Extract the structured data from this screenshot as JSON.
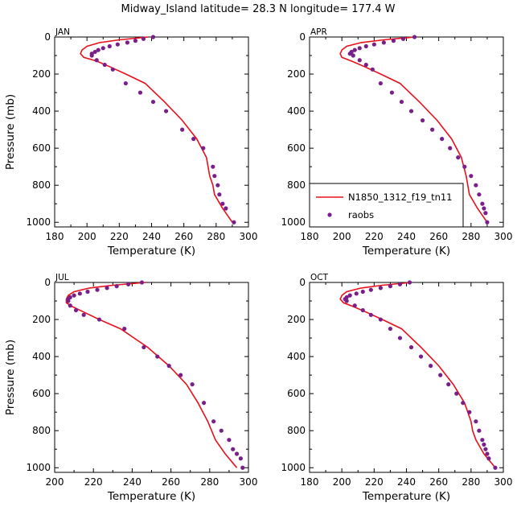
{
  "page_title": "Midway_Island  latitude= 28.3 N longitude= 177.4 W",
  "colors": {
    "model_line": "#e8101a",
    "raobs_marker": "#7a1f8a",
    "axes": "#000000"
  },
  "chart_data": [
    {
      "type": "line",
      "panel_label": "JAN",
      "xlabel": "Temperature (K)",
      "ylabel": "Pressure (mb)",
      "xlim": [
        180,
        300
      ],
      "ylim": [
        1025,
        0
      ],
      "xticks": [
        180,
        200,
        220,
        240,
        260,
        280,
        300
      ],
      "yticks": [
        0,
        200,
        400,
        600,
        800,
        1000
      ],
      "series": [
        {
          "name": "N1850_1312_f19_tn11",
          "style": "line",
          "x": [
            238,
            220,
            208,
            200,
            197,
            196,
            198,
            206,
            214,
            224,
            236,
            248,
            259,
            268,
            274,
            276,
            278,
            279,
            284,
            290
          ],
          "y": [
            0,
            15,
            30,
            50,
            70,
            90,
            110,
            130,
            160,
            200,
            250,
            350,
            450,
            550,
            650,
            750,
            800,
            850,
            925,
            1000
          ]
        },
        {
          "name": "raobs",
          "style": "markers",
          "x": [
            241,
            235,
            230,
            225,
            219,
            214,
            210,
            207,
            205,
            203,
            203,
            206,
            211,
            216,
            224,
            233,
            241,
            249,
            259,
            266,
            272,
            278,
            279,
            281,
            282,
            284,
            286,
            291
          ],
          "y": [
            0,
            10,
            20,
            30,
            40,
            50,
            60,
            70,
            80,
            90,
            100,
            125,
            150,
            175,
            250,
            300,
            350,
            400,
            500,
            550,
            600,
            700,
            750,
            800,
            850,
            900,
            925,
            1000
          ]
        }
      ]
    },
    {
      "type": "line",
      "panel_label": "APR",
      "xlabel": "Temperature (K)",
      "ylabel": "",
      "xlim": [
        180,
        300
      ],
      "ylim": [
        1025,
        0
      ],
      "xticks": [
        180,
        200,
        220,
        240,
        260,
        280,
        300
      ],
      "yticks": [
        0,
        200,
        400,
        600,
        800,
        1000
      ],
      "legend_position": "bottom-left",
      "series": [
        {
          "name": "N1850_1312_f19_tn11",
          "style": "line",
          "x": [
            245,
            226,
            212,
            203,
            200,
            199,
            200,
            206,
            214,
            224,
            236,
            248,
            259,
            268,
            274,
            277,
            278,
            279,
            284,
            290
          ],
          "y": [
            0,
            15,
            30,
            50,
            70,
            90,
            110,
            130,
            160,
            200,
            250,
            350,
            450,
            550,
            650,
            750,
            800,
            850,
            925,
            1000
          ]
        },
        {
          "name": "raobs",
          "style": "markers",
          "x": [
            245,
            238,
            232,
            226,
            220,
            215,
            211,
            208,
            206,
            205,
            207,
            211,
            215,
            219,
            224,
            231,
            237,
            243,
            250,
            256,
            262,
            267,
            272,
            276,
            280,
            283,
            285,
            287,
            288,
            289,
            290
          ],
          "y": [
            0,
            10,
            20,
            30,
            40,
            50,
            60,
            70,
            80,
            90,
            100,
            125,
            150,
            175,
            250,
            300,
            350,
            400,
            450,
            500,
            550,
            600,
            650,
            700,
            750,
            800,
            850,
            900,
            925,
            950,
            1000
          ]
        }
      ]
    },
    {
      "type": "line",
      "panel_label": "JUL",
      "xlabel": "Temperature (K)",
      "ylabel": "Pressure (mb)",
      "xlim": [
        200,
        300
      ],
      "ylim": [
        1025,
        0
      ],
      "xticks": [
        200,
        220,
        240,
        260,
        280,
        300
      ],
      "yticks": [
        0,
        200,
        400,
        600,
        800,
        1000
      ],
      "series": [
        {
          "name": "N1850_1312_f19_tn11",
          "style": "line",
          "x": [
            247,
            230,
            218,
            210,
            207,
            206,
            206,
            209,
            215,
            223,
            234,
            248,
            259,
            268,
            274,
            279,
            281,
            283,
            288,
            294
          ],
          "y": [
            0,
            15,
            30,
            50,
            70,
            90,
            110,
            130,
            160,
            200,
            250,
            350,
            450,
            550,
            650,
            750,
            800,
            850,
            925,
            1000
          ]
        },
        {
          "name": "raobs",
          "style": "markers",
          "x": [
            245,
            238,
            232,
            227,
            222,
            217,
            213,
            210,
            208,
            207,
            207,
            208,
            211,
            215,
            223,
            236,
            246,
            253,
            259,
            265,
            271,
            277,
            282,
            286,
            290,
            292,
            294,
            296,
            297
          ],
          "y": [
            0,
            10,
            20,
            30,
            40,
            50,
            60,
            70,
            80,
            90,
            100,
            125,
            150,
            175,
            200,
            250,
            350,
            400,
            450,
            500,
            550,
            650,
            750,
            800,
            850,
            900,
            925,
            950,
            1000
          ]
        }
      ]
    },
    {
      "type": "line",
      "panel_label": "OCT",
      "xlabel": "Temperature (K)",
      "ylabel": "",
      "xlim": [
        180,
        300
      ],
      "ylim": [
        1025,
        0
      ],
      "xticks": [
        180,
        200,
        220,
        240,
        260,
        280,
        300
      ],
      "yticks": [
        0,
        200,
        400,
        600,
        800,
        1000
      ],
      "series": [
        {
          "name": "N1850_1312_f19_tn11",
          "style": "line",
          "x": [
            243,
            225,
            212,
            203,
            200,
            199,
            201,
            207,
            215,
            225,
            237,
            249,
            260,
            269,
            276,
            280,
            281,
            283,
            288,
            295
          ],
          "y": [
            0,
            15,
            30,
            50,
            70,
            90,
            110,
            130,
            160,
            200,
            250,
            350,
            450,
            550,
            650,
            750,
            800,
            850,
            925,
            1000
          ]
        },
        {
          "name": "raobs",
          "style": "markers",
          "x": [
            242,
            236,
            230,
            224,
            218,
            213,
            209,
            205,
            203,
            202,
            203,
            208,
            213,
            218,
            224,
            230,
            236,
            243,
            249,
            255,
            261,
            266,
            271,
            275,
            279,
            283,
            285,
            287,
            288,
            289,
            290,
            291,
            295
          ],
          "y": [
            0,
            10,
            20,
            30,
            40,
            50,
            60,
            70,
            80,
            90,
            100,
            125,
            150,
            175,
            200,
            250,
            300,
            350,
            400,
            450,
            500,
            550,
            600,
            650,
            700,
            750,
            800,
            850,
            875,
            900,
            925,
            950,
            1000
          ]
        }
      ]
    }
  ]
}
